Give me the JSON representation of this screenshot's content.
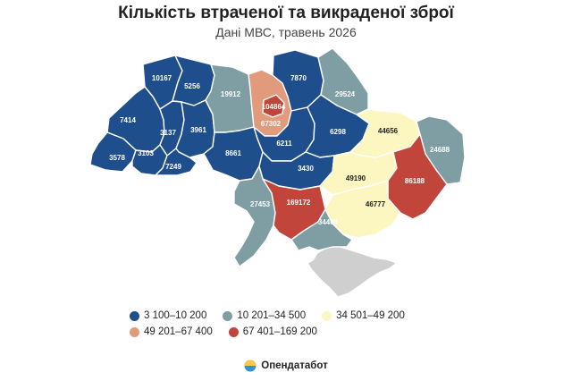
{
  "header": {
    "title": "Кількість втраченої та викраденої зброї",
    "subtitle": "Дані МВС, травень 2026"
  },
  "categories": [
    {
      "id": "c1",
      "label": "3 100–10 200",
      "color": "#1f4e8c"
    },
    {
      "id": "c2",
      "label": "10 201–34 500",
      "color": "#7e9ea4"
    },
    {
      "id": "c3",
      "label": "34 501–49 200",
      "color": "#fcf7c1"
    },
    {
      "id": "c4",
      "label": "49 201–67 400",
      "color": "#e19b7c"
    },
    {
      "id": "c5",
      "label": "67 401–169 200",
      "color": "#c1453a"
    }
  ],
  "occupied_color": "#cfcfcf",
  "regions": [
    {
      "name": "volyn",
      "value": "10167",
      "cat": "c1"
    },
    {
      "name": "rivne",
      "value": "5256",
      "cat": "c1"
    },
    {
      "name": "lviv",
      "value": "7414",
      "cat": "c1"
    },
    {
      "name": "ternopil",
      "value": "3137",
      "cat": "c1"
    },
    {
      "name": "khmelnytskyi",
      "value": "3961",
      "cat": "c1"
    },
    {
      "name": "zakarpattia",
      "value": "3578",
      "cat": "c1"
    },
    {
      "name": "ivano-frankivsk",
      "value": "3103",
      "cat": "c1"
    },
    {
      "name": "chernivtsi",
      "value": "7249",
      "cat": "c1"
    },
    {
      "name": "zhytomyr",
      "value": "19912",
      "cat": "c2"
    },
    {
      "name": "vinnytsia",
      "value": "8661",
      "cat": "c1"
    },
    {
      "name": "kyiv-city",
      "value": "104864",
      "cat": "c5"
    },
    {
      "name": "kyiv-oblast",
      "value": "67302",
      "cat": "c4"
    },
    {
      "name": "chernihiv",
      "value": "7870",
      "cat": "c1"
    },
    {
      "name": "cherkasy",
      "value": "6211",
      "cat": "c1"
    },
    {
      "name": "sumy",
      "value": "29524",
      "cat": "c2"
    },
    {
      "name": "poltava",
      "value": "6298",
      "cat": "c1"
    },
    {
      "name": "kharkiv",
      "value": "44656",
      "cat": "c3"
    },
    {
      "name": "luhansk",
      "value": "24688",
      "cat": "c2"
    },
    {
      "name": "kirovohrad",
      "value": "3430",
      "cat": "c1"
    },
    {
      "name": "dnipropetrovsk",
      "value": "49190",
      "cat": "c3"
    },
    {
      "name": "donetsk",
      "value": "86188",
      "cat": "c5"
    },
    {
      "name": "odesa",
      "value": "27453",
      "cat": "c2"
    },
    {
      "name": "mykolaiv",
      "value": "169172",
      "cat": "c5"
    },
    {
      "name": "zaporizhzhia",
      "value": "46777",
      "cat": "c3"
    },
    {
      "name": "kherson",
      "value": "34404",
      "cat": "c2"
    }
  ],
  "brand": {
    "name": "Опендатабот"
  }
}
